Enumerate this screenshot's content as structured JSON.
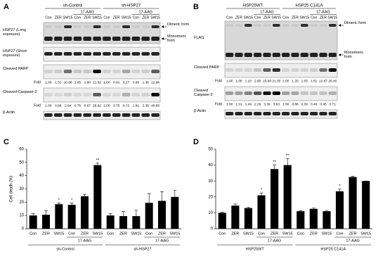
{
  "blots": [
    {
      "panel": "A",
      "groups": [
        {
          "name": "sh-Control",
          "treatment": "17-AAG"
        },
        {
          "name": "sh-HSP27",
          "treatment": "17-AAG"
        }
      ],
      "lanes": [
        "Con",
        "ZER",
        "SW15",
        "Con",
        "ZER",
        "SW15",
        "Con",
        "ZER",
        "SW15",
        "Con",
        "ZER",
        "SW15"
      ],
      "forms": [
        "Dimeric form",
        "Monomeric form"
      ],
      "rows": [
        {
          "label": "HSP27 (Long exposure)"
        },
        {
          "label": "HSP27 (Short exposure)"
        },
        {
          "label": "Cleaved PARP",
          "fold_label": "Fold",
          "folds": [
            "1.00",
            "1.51",
            "10.98",
            "1.95",
            "1.80",
            "21.82",
            "1.00",
            "0.81",
            "5.27",
            "0.89",
            "1.36",
            "12.96"
          ]
        },
        {
          "label": "Cleaved Caspase-3",
          "fold_label": "Fold",
          "folds": [
            "1.00",
            "0.68",
            "2.64",
            "0.75",
            "0.67",
            "28.92",
            "1.00",
            "0.75",
            "9.72",
            "1.91",
            "2.35",
            "49.65"
          ]
        },
        {
          "label": "β-Actin"
        }
      ]
    },
    {
      "panel": "B",
      "groups": [
        {
          "name": "HSP25WT",
          "treatment": "17-AAG"
        },
        {
          "name": "HSP25 C141A",
          "treatment": "17-AAG"
        }
      ],
      "lanes": [
        "Con",
        "ZER",
        "SW15",
        "Con",
        "ZER",
        "SW15",
        "Con",
        "ZER",
        "SW15",
        "Con",
        "ZER",
        "SW15"
      ],
      "forms": [
        "Dimeric form",
        "Monomeric form"
      ],
      "rows": [
        {
          "label": "FLAG"
        },
        {
          "label": "Cleaved PARP",
          "fold_label": "Fold",
          "folds": [
            "1.00",
            "1.08",
            "1.10",
            "2.80",
            "15.68",
            "21.30",
            "1.00",
            "1.20",
            "1.05",
            "1.81",
            "12.87",
            "26.40"
          ]
        },
        {
          "label": "Cleaved Caspase-3",
          "fold_label": "Fold",
          "folds": [
            "1.00",
            "1.01",
            "1.49",
            "2.29",
            "3.39",
            "3.63",
            "1.00",
            "0.86",
            "0.39",
            "0.40",
            "0.45",
            "0.71"
          ]
        },
        {
          "label": "β-Actin"
        }
      ]
    }
  ],
  "chart_data": [
    {
      "panel": "C",
      "type": "bar",
      "y_label": "Cell death (%)",
      "categories": [
        "Con",
        "ZER",
        "SW15",
        "Con",
        "ZER",
        "SW15",
        "Con",
        "ZER",
        "SW15",
        "Con",
        "ZER",
        "SW15"
      ],
      "values": [
        10,
        10.5,
        18.5,
        18,
        24.5,
        48,
        10,
        9.5,
        9.5,
        19.5,
        21,
        24
      ],
      "errors": [
        1.5,
        3,
        1,
        1.5,
        1.5,
        1.5,
        1.5,
        3.5,
        4.5,
        7,
        7,
        5
      ],
      "significance": [
        null,
        null,
        "*",
        "*",
        null,
        "**",
        null,
        null,
        null,
        null,
        null,
        null
      ],
      "groups": [
        {
          "name": "sh-Control",
          "treatment": "17-AAG"
        },
        {
          "name": "sh-HSP27",
          "treatment": "17-AAG"
        }
      ],
      "color": "#000000",
      "ylim": [
        0,
        60
      ],
      "yticks": [
        0,
        10,
        20,
        30,
        40,
        50,
        60
      ]
    },
    {
      "panel": "D",
      "type": "bar",
      "categories": [
        "Con",
        "ZER",
        "SW15",
        "Con",
        "ZER",
        "SW15",
        "Con",
        "ZER",
        "SW15",
        "Con",
        "ZER",
        "SW15"
      ],
      "values": [
        10,
        14.5,
        13,
        21,
        37.5,
        40,
        11,
        12.5,
        11,
        23.5,
        32.5,
        30
      ],
      "errors": [
        0.3,
        1,
        0.5,
        1.5,
        2.5,
        4,
        0.3,
        0.5,
        0.5,
        1.5,
        0.5,
        0
      ],
      "significance": [
        null,
        null,
        null,
        "*",
        "**",
        "**",
        null,
        null,
        null,
        "*",
        null,
        null
      ],
      "groups": [
        {
          "name": "HSP25WT",
          "treatment": "17-AAG"
        },
        {
          "name": "HSP25 C141A",
          "treatment": "17-AAG"
        }
      ],
      "color": "#000000",
      "ylim": [
        0,
        50
      ],
      "yticks": [
        0,
        10,
        20,
        30,
        40,
        50
      ]
    }
  ]
}
